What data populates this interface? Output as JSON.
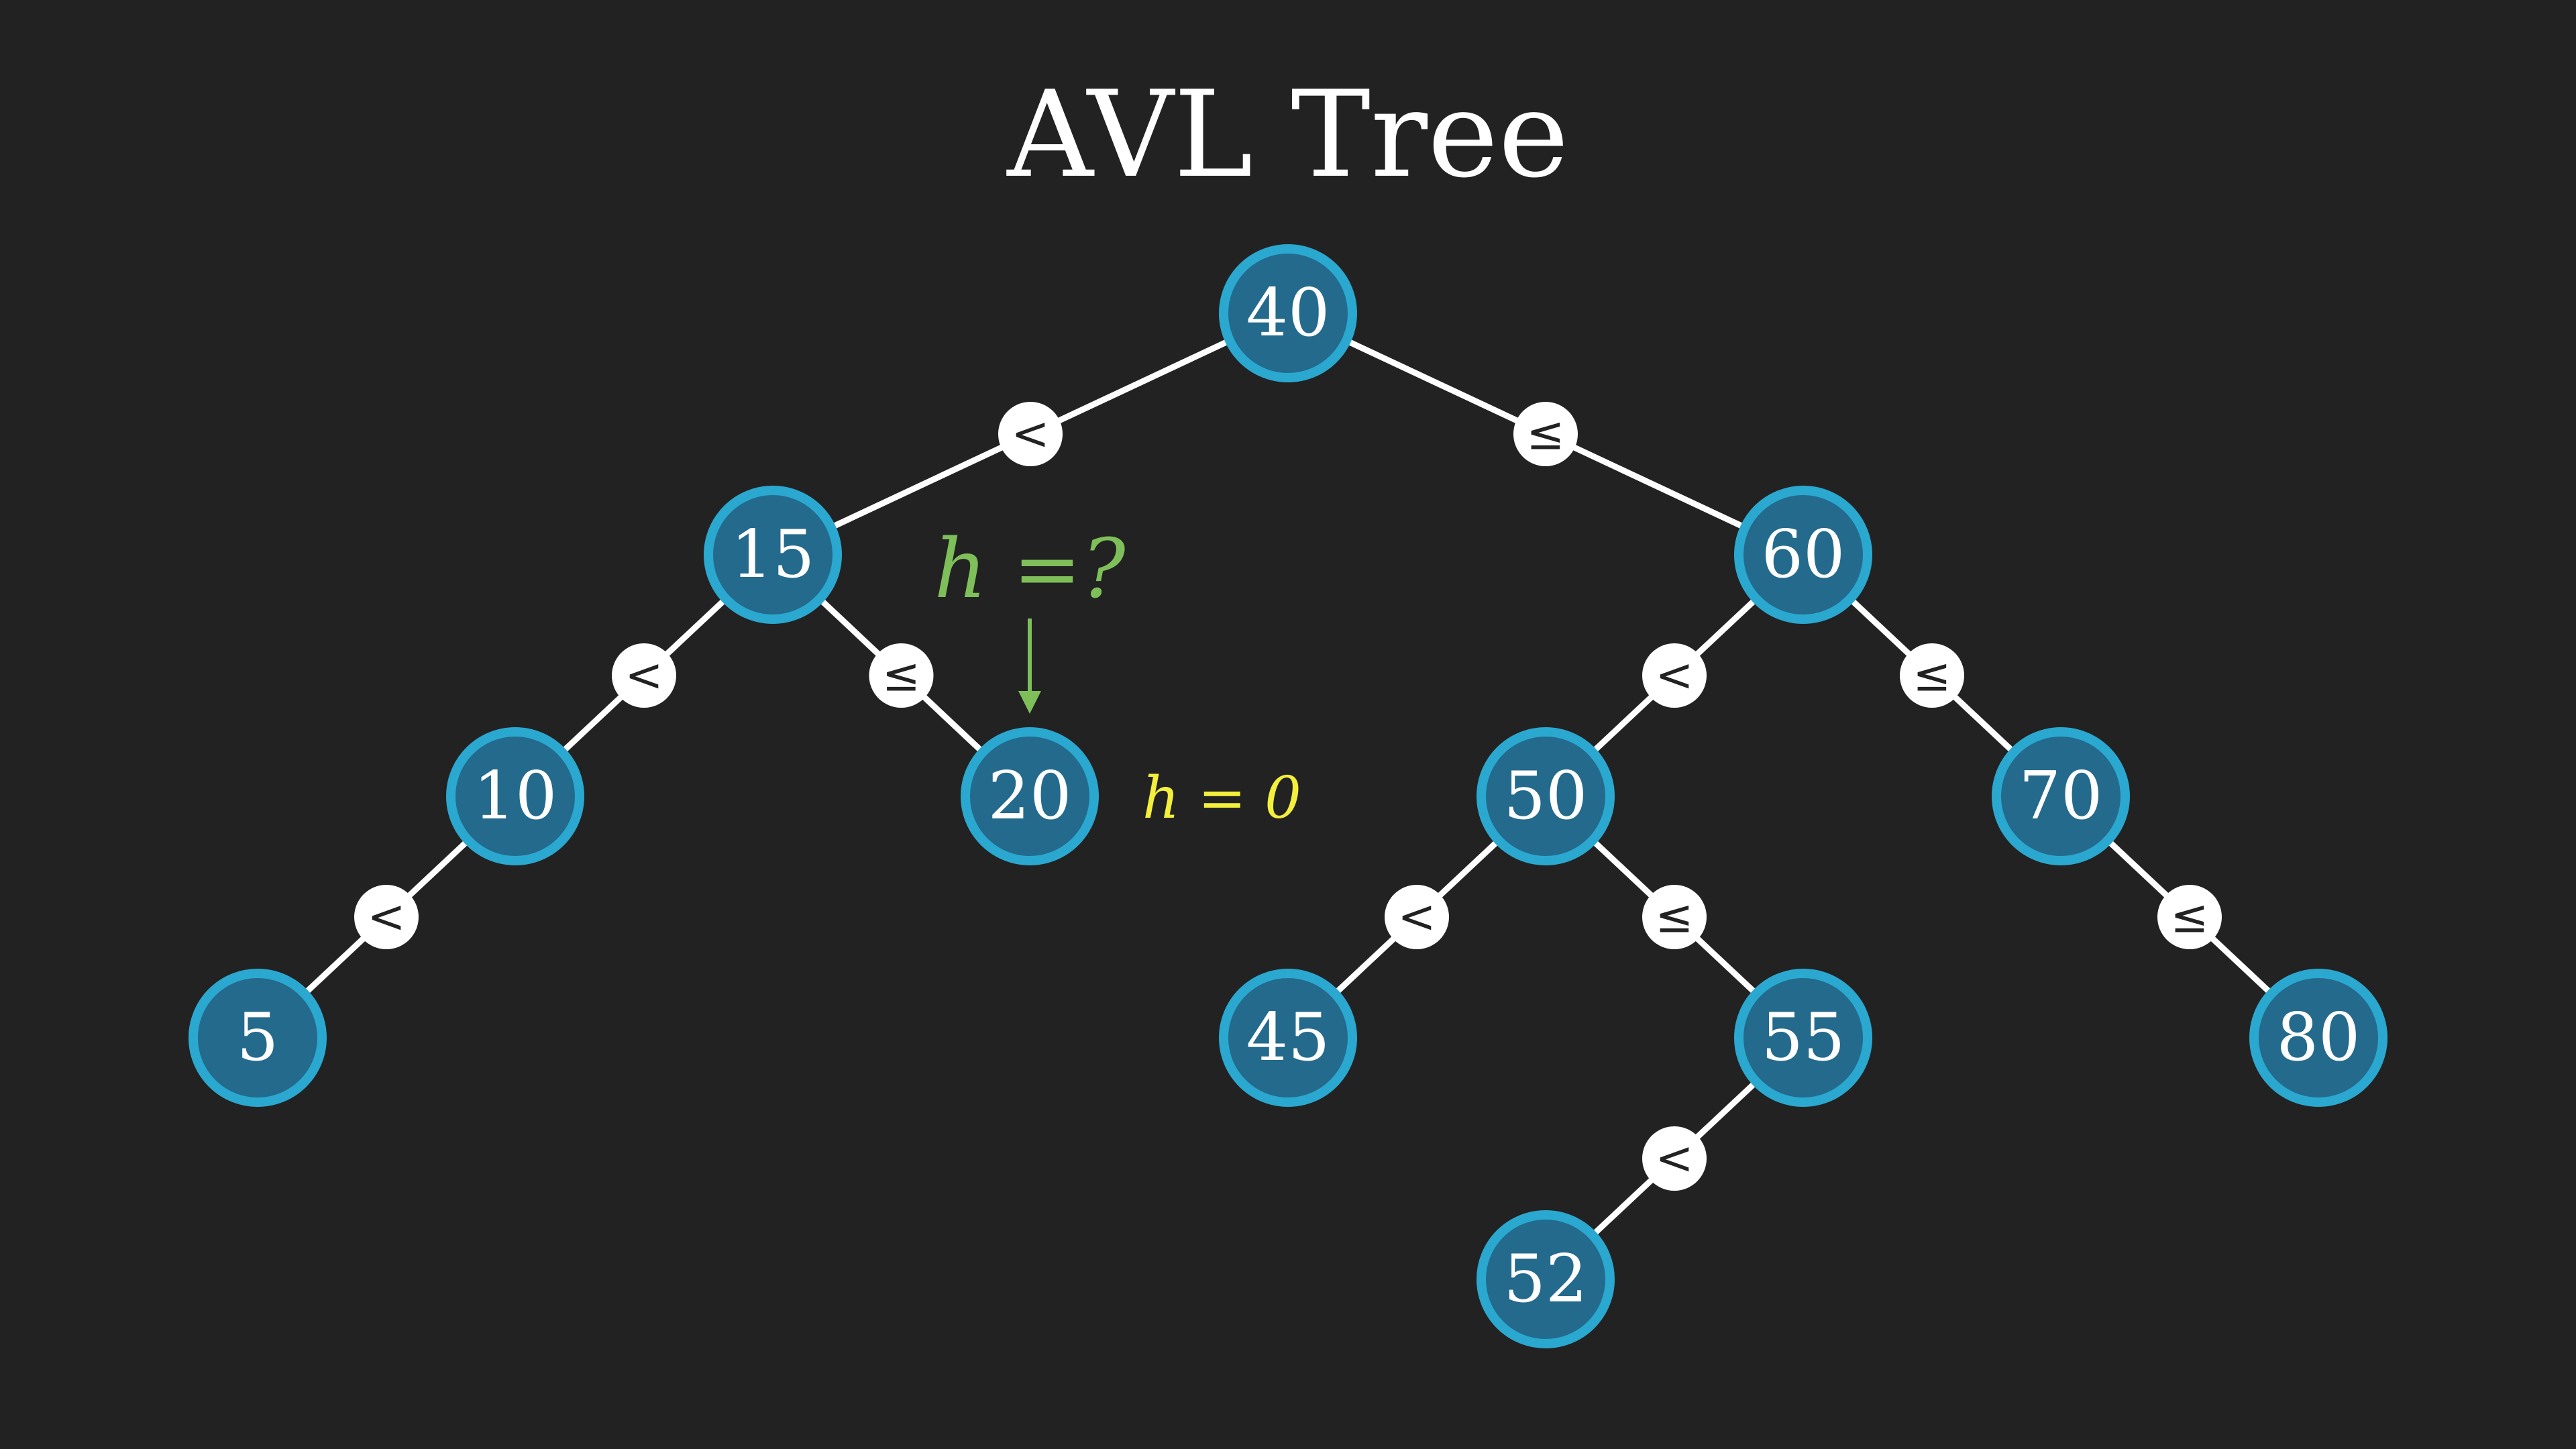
{
  "title": "AVL Tree",
  "colors": {
    "background": "#222222",
    "node_fill": "#236a8c",
    "node_ring": "#2aa8d0",
    "edge": "#ffffff",
    "annotation_question": "#7fbf5a",
    "annotation_height": "#f3ef3c"
  },
  "tree": {
    "nodes": [
      {
        "id": "n40",
        "value": "40"
      },
      {
        "id": "n15",
        "value": "15"
      },
      {
        "id": "n60",
        "value": "60"
      },
      {
        "id": "n10",
        "value": "10"
      },
      {
        "id": "n20",
        "value": "20"
      },
      {
        "id": "n50",
        "value": "50"
      },
      {
        "id": "n70",
        "value": "70"
      },
      {
        "id": "n5",
        "value": "5"
      },
      {
        "id": "n45",
        "value": "45"
      },
      {
        "id": "n55",
        "value": "55"
      },
      {
        "id": "n80",
        "value": "80"
      },
      {
        "id": "n52",
        "value": "52"
      }
    ],
    "edges": [
      {
        "from": "n40",
        "to": "n15",
        "label": "<"
      },
      {
        "from": "n40",
        "to": "n60",
        "label": "≤"
      },
      {
        "from": "n15",
        "to": "n10",
        "label": "<"
      },
      {
        "from": "n15",
        "to": "n20",
        "label": "≤"
      },
      {
        "from": "n60",
        "to": "n50",
        "label": "<"
      },
      {
        "from": "n60",
        "to": "n70",
        "label": "≤"
      },
      {
        "from": "n10",
        "to": "n5",
        "label": "<"
      },
      {
        "from": "n50",
        "to": "n45",
        "label": "<"
      },
      {
        "from": "n50",
        "to": "n55",
        "label": "≤"
      },
      {
        "from": "n70",
        "to": "n80",
        "label": "≤"
      },
      {
        "from": "n55",
        "to": "n52",
        "label": "<"
      }
    ]
  },
  "annotations": {
    "height_question": "h =?",
    "height_value": "h = 0"
  }
}
